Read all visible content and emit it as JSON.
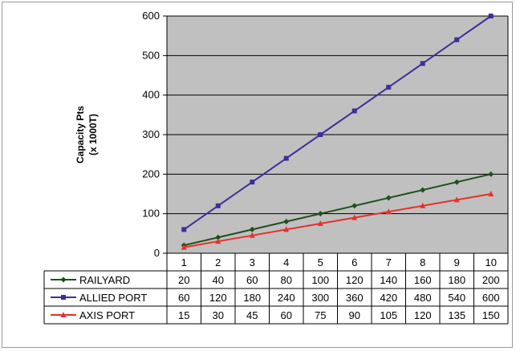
{
  "chart_data": {
    "type": "line",
    "title": "",
    "xlabel": "",
    "ylabel": "Capacity Pts",
    "ylabel_sub": "(x 1000T)",
    "categories": [
      "1",
      "2",
      "3",
      "4",
      "5",
      "6",
      "7",
      "8",
      "9",
      "10"
    ],
    "ylim": [
      0,
      600
    ],
    "yticks": [
      0,
      100,
      200,
      300,
      400,
      500,
      600
    ],
    "grid": true,
    "plot_background": "#c0c0c0",
    "legend": "data-table",
    "series": [
      {
        "name": "RAILYARD",
        "color": "#1f4f1f",
        "marker": "diamond",
        "values": [
          20,
          40,
          60,
          80,
          100,
          120,
          140,
          160,
          180,
          200
        ]
      },
      {
        "name": "ALLIED PORT",
        "color": "#3b2f9a",
        "marker": "square",
        "values": [
          60,
          120,
          180,
          240,
          300,
          360,
          420,
          480,
          540,
          600
        ]
      },
      {
        "name": "AXIS PORT",
        "color": "#e8302a",
        "marker": "triangle",
        "values": [
          15,
          30,
          45,
          60,
          75,
          90,
          105,
          120,
          135,
          150
        ]
      }
    ]
  }
}
